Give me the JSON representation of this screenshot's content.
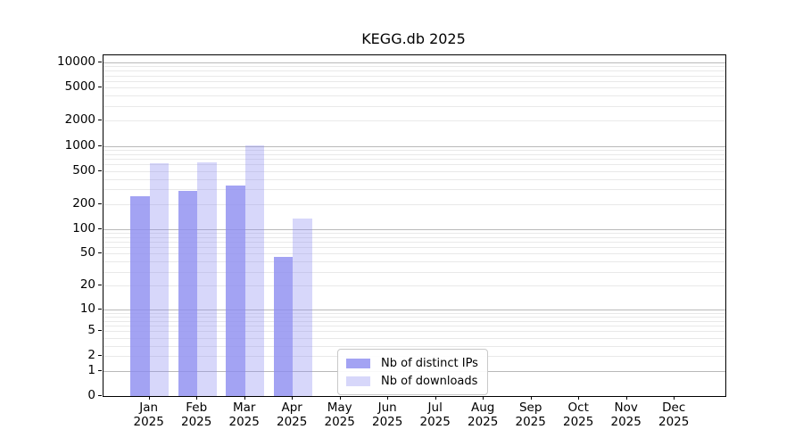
{
  "figure": {
    "title": "KEGG.db 2025"
  },
  "chart_data": {
    "type": "bar",
    "title": "KEGG.db 2025",
    "xlabel": "",
    "ylabel": "",
    "y_scale": "log1p",
    "ylim": [
      0,
      12000
    ],
    "grid": "horizontal",
    "legend_position": "bottom-center-inside",
    "categories": [
      "Jan",
      "Feb",
      "Mar",
      "Apr",
      "May",
      "Jun",
      "Jul",
      "Aug",
      "Sep",
      "Oct",
      "Nov",
      "Dec"
    ],
    "x_tick_line2": "2025",
    "y_ticks": [
      0,
      1,
      2,
      5,
      10,
      20,
      50,
      100,
      200,
      500,
      1000,
      2000,
      5000,
      10000
    ],
    "series": [
      {
        "name": "Nb of distinct IPs",
        "base_color": "#8c8cf0",
        "alpha": 0.8,
        "values": [
          250,
          285,
          335,
          46,
          null,
          null,
          null,
          null,
          null,
          null,
          null,
          null
        ]
      },
      {
        "name": "Nb of downloads",
        "base_color": "#8c8cf0",
        "alpha": 0.35,
        "values": [
          620,
          640,
          1010,
          132,
          null,
          null,
          null,
          null,
          null,
          null,
          null,
          null
        ]
      }
    ],
    "colors": {
      "major_grid": "#b9b9b9",
      "minor_grid": "#e9e9e9",
      "axis": "#000000",
      "background": "#ffffff"
    }
  }
}
